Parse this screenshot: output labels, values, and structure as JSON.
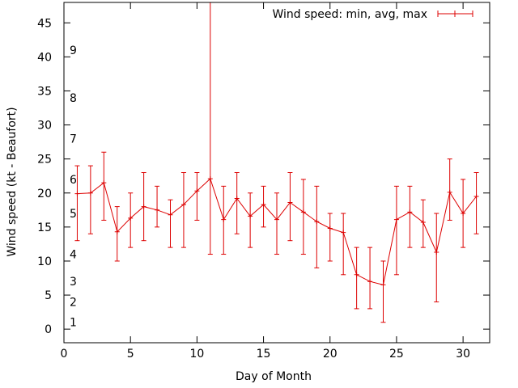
{
  "chart_data": {
    "type": "line",
    "title": "",
    "xlabel": "Day of Month",
    "ylabel": "Wind speed (kt - Beaufort)",
    "xlim": [
      0,
      32
    ],
    "ylim": [
      -2,
      48
    ],
    "x_ticks": [
      0,
      5,
      10,
      15,
      20,
      25,
      30
    ],
    "y_ticks": [
      0,
      5,
      10,
      15,
      20,
      25,
      30,
      35,
      40,
      45
    ],
    "legend": "Wind speed: min, avg, max",
    "legend_position": "top-right",
    "color": "#dd0000",
    "beaufort_marks": [
      {
        "label": "1",
        "kt": 1
      },
      {
        "label": "2",
        "kt": 4
      },
      {
        "label": "3",
        "kt": 7
      },
      {
        "label": "4",
        "kt": 11
      },
      {
        "label": "5",
        "kt": 17
      },
      {
        "label": "6",
        "kt": 22
      },
      {
        "label": "7",
        "kt": 28
      },
      {
        "label": "8",
        "kt": 34
      },
      {
        "label": "9",
        "kt": 41
      }
    ],
    "series": [
      {
        "name": "Wind speed: min, avg, max",
        "x": [
          1,
          2,
          3,
          4,
          5,
          6,
          7,
          8,
          9,
          10,
          11,
          12,
          13,
          14,
          15,
          16,
          17,
          18,
          19,
          20,
          21,
          22,
          23,
          24,
          25,
          26,
          27,
          28,
          29,
          30,
          31
        ],
        "avg": [
          19.9,
          20.0,
          21.5,
          14.3,
          16.3,
          18.0,
          17.5,
          16.8,
          18.3,
          20.3,
          22.1,
          16.1,
          19.2,
          16.6,
          18.3,
          16.1,
          18.6,
          17.2,
          15.8,
          14.8,
          14.2,
          8.0,
          7.0,
          6.5,
          16.1,
          17.2,
          15.7,
          11.3,
          20.1,
          17.0,
          19.5
        ],
        "min": [
          13,
          14,
          16,
          10,
          12,
          13,
          15,
          12,
          12,
          16,
          11,
          11,
          14,
          12,
          15,
          11,
          13,
          11,
          9,
          10,
          8,
          3,
          3,
          1,
          8,
          12,
          12,
          4,
          16,
          12,
          14
        ],
        "max": [
          24,
          24,
          26,
          18,
          20,
          23,
          21,
          19,
          23,
          23,
          48,
          21,
          23,
          20,
          21,
          20,
          23,
          22,
          21,
          17,
          17,
          12,
          12,
          10,
          21,
          21,
          19,
          17,
          25,
          22,
          23
        ]
      }
    ]
  }
}
